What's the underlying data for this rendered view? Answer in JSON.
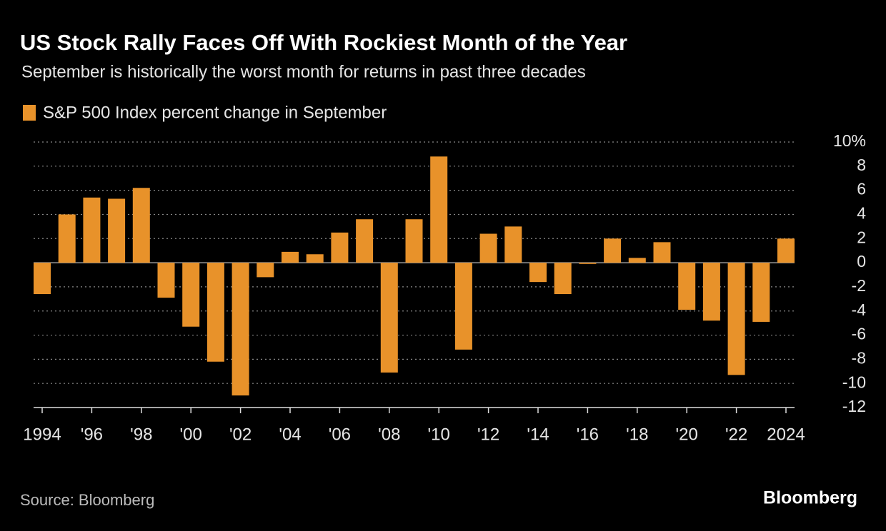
{
  "chart_data": {
    "type": "bar",
    "title": "US Stock Rally Faces Off With Rockiest Month of the Year",
    "subtitle": "September is historically the worst month for returns in past three decades",
    "series": [
      {
        "name": "S&P 500 Index percent change in September",
        "color": "#e8922a",
        "values": [
          -2.6,
          4.0,
          5.4,
          5.3,
          6.2,
          -2.9,
          -5.3,
          -8.2,
          -11.0,
          -1.2,
          0.9,
          0.7,
          2.5,
          3.6,
          -9.1,
          3.6,
          8.8,
          -7.2,
          2.4,
          3.0,
          -1.6,
          -2.6,
          -0.1,
          2.0,
          0.4,
          1.7,
          -3.9,
          -4.8,
          -9.3,
          -4.9,
          2.0
        ]
      }
    ],
    "categories": [
      "1994",
      null,
      "'96",
      null,
      "'98",
      null,
      "'00",
      null,
      "'02",
      null,
      "'04",
      null,
      "'06",
      null,
      "'08",
      null,
      "'10",
      null,
      "'12",
      null,
      "'14",
      null,
      "'16",
      null,
      "'18",
      null,
      "'20",
      null,
      "'22",
      null,
      "2024"
    ],
    "ylim": [
      -12,
      10
    ],
    "yticks": [
      {
        "value": 10,
        "label": "10%"
      },
      8,
      6,
      4,
      2,
      0,
      -2,
      -4,
      -6,
      -8,
      -10,
      -12
    ],
    "grid": true,
    "source": "Source: Bloomberg",
    "logo": "Bloomberg"
  }
}
